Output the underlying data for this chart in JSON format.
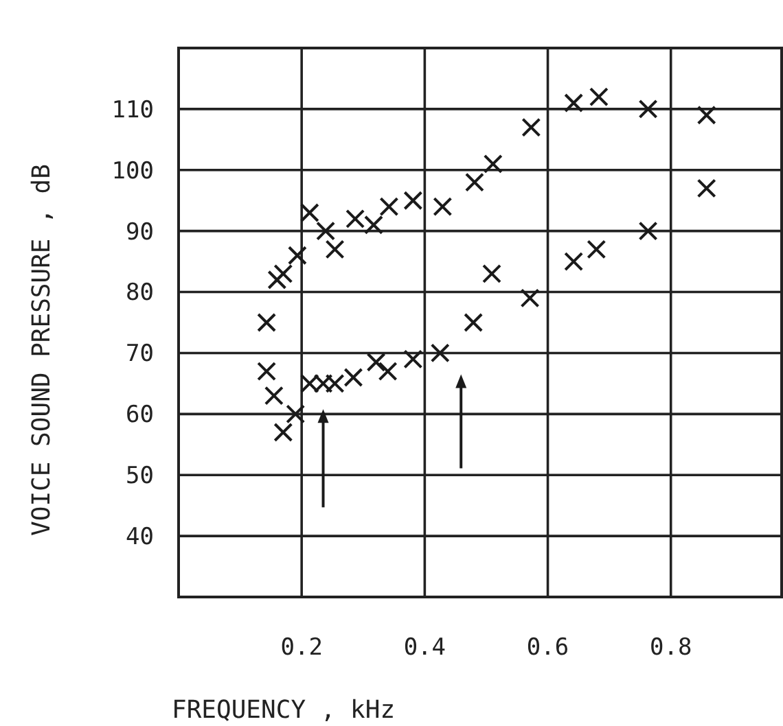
{
  "chart_data": {
    "type": "scatter",
    "xlabel": "FREQUENCY , kHz",
    "ylabel": "VOICE SOUND PRESSURE , dB",
    "x": [
      0.143,
      0.16,
      0.17,
      0.193,
      0.213,
      0.239,
      0.254,
      0.287,
      0.317,
      0.342,
      0.381,
      0.429,
      0.481,
      0.511,
      0.573,
      0.642,
      0.683,
      0.763,
      0.858,
      0.858,
      0.763,
      0.679,
      0.642,
      0.571,
      0.509,
      0.479,
      0.143,
      0.155,
      0.19,
      0.17,
      0.213,
      0.235,
      0.254,
      0.284,
      0.321,
      0.34,
      0.381,
      0.425
    ],
    "series": [
      {
        "color": "#1a1a1a",
        "values": [
          75,
          82,
          83,
          86,
          93,
          90,
          87,
          92,
          91,
          94,
          95,
          94,
          98,
          101,
          107,
          111,
          112,
          110,
          109,
          97,
          90,
          87,
          85,
          79,
          83,
          75,
          67,
          63,
          60,
          57,
          65,
          65,
          65,
          66,
          68.5,
          67,
          69,
          70
        ]
      }
    ],
    "xlim": [
      0,
      0.98
    ],
    "ylim": [
      30,
      120
    ],
    "xticks": [
      0.2,
      0.4,
      0.6,
      0.8
    ],
    "yticks": [
      40,
      50,
      60,
      70,
      80,
      90,
      100,
      110
    ],
    "grid": true,
    "marker": "cross"
  }
}
